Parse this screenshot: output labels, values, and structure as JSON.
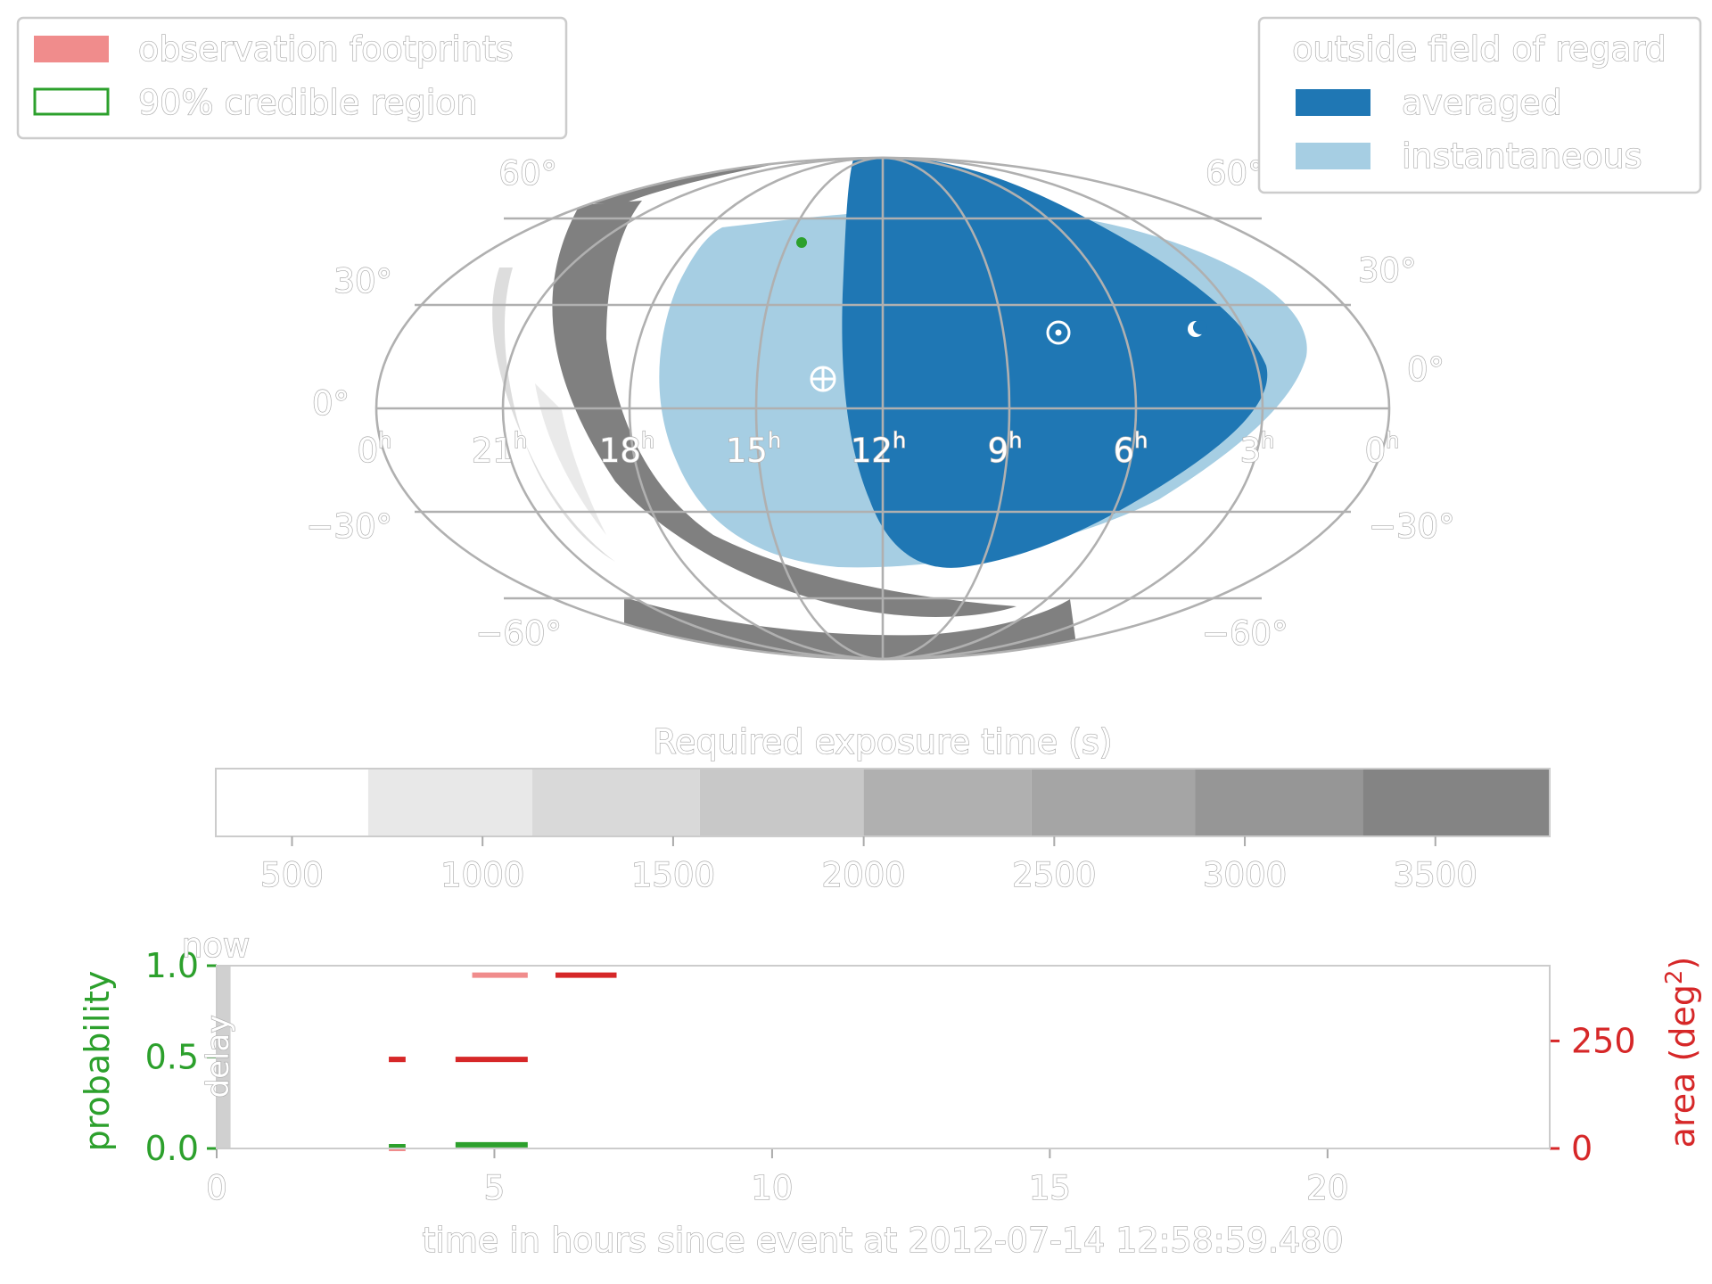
{
  "chart_data": [
    {
      "type": "map",
      "projection": "aitoff-mollweide-all-sky",
      "ra_tick_labels": [
        "0",
        "21",
        "18",
        "15",
        "12",
        "9",
        "6",
        "3",
        "0"
      ],
      "ra_tick_superscript": "h",
      "dec_tick_labels": [
        "60°",
        "30°",
        "0°",
        "−30°",
        "−60°"
      ],
      "legend_left": [
        {
          "name": "observation footprints",
          "color": "#f08c8c",
          "style": "filled"
        },
        {
          "name": "90% credible region",
          "color": "#2ca02c",
          "style": "outline"
        }
      ],
      "legend_right": {
        "title": "outside field of regard",
        "entries": [
          {
            "name": "averaged",
            "color": "#1f77b4"
          },
          {
            "name": "instantaneous",
            "color": "#a6cee3"
          }
        ]
      },
      "markers": [
        {
          "name": "sun",
          "symbol": "⊙"
        },
        {
          "name": "moon",
          "symbol": "☾"
        },
        {
          "name": "earth",
          "symbol": "⊕"
        }
      ]
    },
    {
      "type": "colorbar",
      "title": "Required exposure time (s)",
      "tick_labels": [
        "500",
        "1000",
        "1500",
        "2000",
        "2500",
        "3000",
        "3500"
      ],
      "tick_values": [
        500,
        1000,
        1500,
        2000,
        2500,
        3000,
        3500
      ],
      "range": [
        300,
        3800
      ],
      "bins": [
        300,
        700,
        1130,
        1570,
        2000,
        2440,
        2870,
        3310,
        3800
      ],
      "colors": [
        "#ffffff",
        "#e8e8e8",
        "#d9d9d9",
        "#c8c8c8",
        "#b0b0b0",
        "#a5a5a5",
        "#969696",
        "#848484"
      ]
    },
    {
      "type": "timeline",
      "xlabel": "time in hours since event at 2012-07-14 12:58:59.480",
      "ylabel_left": "probability",
      "ylabel_right": "area (deg",
      "ylabel_right_sup": "2",
      "ylabel_right_end": ")",
      "x_tick_labels": [
        "0",
        "5",
        "10",
        "15",
        "20"
      ],
      "x_ticks": [
        0,
        5,
        10,
        15,
        20
      ],
      "xlim": [
        0,
        24
      ],
      "y_left_tick_labels": [
        "0.0",
        "0.5",
        "1.0"
      ],
      "y_left_ticks": [
        0,
        0.5,
        1.0
      ],
      "ylim_left": [
        0,
        1.0
      ],
      "y_right_tick_labels": [
        "0",
        "250"
      ],
      "y_right_ticks": [
        0,
        250
      ],
      "ylim_right": [
        0,
        425
      ],
      "now_label": "now",
      "delay_label": "delay",
      "delay_span": [
        0,
        0.25
      ],
      "left_color": "#2ca02c",
      "right_color": "#d62728",
      "probability_segments": [
        {
          "start": 3.1,
          "end": 3.4,
          "value": 0.01
        },
        {
          "start": 4.3,
          "end": 5.6,
          "value": 0.02
        }
      ],
      "area_segments": [
        {
          "start": 3.1,
          "end": 3.4,
          "value": 207
        },
        {
          "start": 4.3,
          "end": 5.6,
          "value": 207
        },
        {
          "start": 6.1,
          "end": 7.2,
          "value": 403
        }
      ],
      "footprint_segments": [
        {
          "start": 3.1,
          "end": 3.4,
          "value": 207
        },
        {
          "start": 4.6,
          "end": 5.6,
          "value": 403
        },
        {
          "start": 3.1,
          "end": 3.4,
          "value": 0
        }
      ]
    }
  ]
}
